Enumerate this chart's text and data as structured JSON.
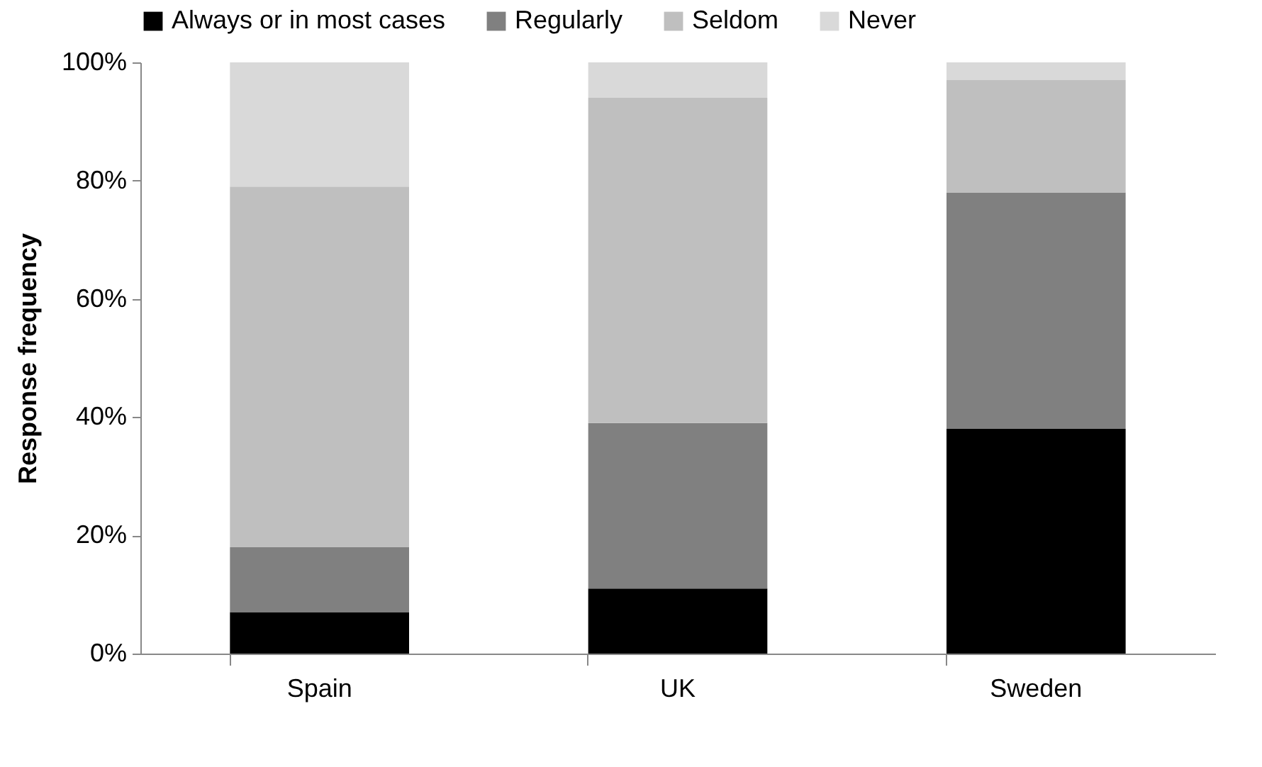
{
  "chart_data": {
    "type": "bar",
    "stacked": true,
    "ylabel": "Response frequency",
    "categories": [
      "Spain",
      "UK",
      "Sweden"
    ],
    "series": [
      {
        "name": "Always or in most cases",
        "color": "#000000",
        "values": [
          7,
          11,
          38
        ]
      },
      {
        "name": "Regularly",
        "color": "#808080",
        "values": [
          11,
          28,
          40
        ]
      },
      {
        "name": "Seldom",
        "color": "#bfbfbf",
        "values": [
          61,
          55,
          19
        ]
      },
      {
        "name": "Never",
        "color": "#d9d9d9",
        "values": [
          21,
          6,
          3
        ]
      }
    ],
    "ylim": [
      0,
      100
    ],
    "yticks": [
      {
        "value": 0,
        "label": "0%"
      },
      {
        "value": 20,
        "label": "20%"
      },
      {
        "value": 40,
        "label": "40%"
      },
      {
        "value": 60,
        "label": "60%"
      },
      {
        "value": 80,
        "label": "80%"
      },
      {
        "value": 100,
        "label": "100%"
      }
    ],
    "grid": false,
    "legend": "top"
  }
}
